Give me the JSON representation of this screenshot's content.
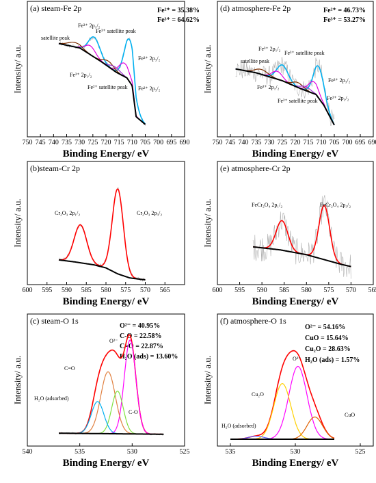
{
  "figure": {
    "x_axis_label": "Binding Energy/ eV",
    "y_axis_label": "Intensity/ a.u."
  },
  "chart_data": [
    {
      "id": "a",
      "type": "line",
      "title": "(a) steam-Fe 2p",
      "xlabel": "Binding Energy/ eV",
      "ylabel": "Intensity/ a.u.",
      "xlim": [
        750,
        690
      ],
      "reversed_x": true,
      "x_ticks": [
        "750",
        "745",
        "740",
        "735",
        "730",
        "725",
        "720",
        "715",
        "710",
        "705",
        "700",
        "695",
        "690"
      ],
      "data_range": [
        738,
        705
      ],
      "stats": [
        "Fe²⁺ = 35.38%",
        "Fe³⁺ = 64.62%"
      ],
      "annotations": [
        "satellite peak",
        "Fe³⁺ 2p₁/₂",
        "Fe³⁺ satellite peak",
        "Fe³⁺ 2p₃/₂",
        "Fe²⁺ 2p₁/₂",
        "Fe²⁺ satellite peak",
        "Fe²⁺ 2p₃/₂"
      ],
      "background": [
        [
          738,
          0.78
        ],
        [
          730,
          0.74
        ],
        [
          722,
          0.62
        ],
        [
          716,
          0.52
        ],
        [
          712,
          0.47
        ],
        [
          710,
          0.4
        ],
        [
          708.5,
          0.12
        ],
        [
          705,
          0.05
        ]
      ],
      "series": [
        {
          "color": "#00b0f0",
          "peaks": [
            [
              724.5,
              0.18,
              2.2
            ],
            [
              711,
              0.38,
              2.0
            ]
          ]
        },
        {
          "color": "#e000e0",
          "peaks": [
            [
              726,
              0.08,
              2.0
            ],
            [
              713,
              0.12,
              2.0
            ]
          ]
        },
        {
          "color": "#7b2d00",
          "peaks": [
            [
              719,
              0.05,
              2.0
            ],
            [
              732,
              0.04,
              2.5
            ]
          ]
        },
        {
          "color": "#9b30d0",
          "peaks": [
            [
              716.5,
              0.04,
              2.0
            ]
          ]
        }
      ],
      "noise": 0.02
    },
    {
      "id": "d",
      "type": "line",
      "title": "(d) atmosphere-Fe 2p",
      "xlabel": "Binding Energy/ eV",
      "ylabel": "Intensity/ a.u.",
      "xlim": [
        750,
        690
      ],
      "reversed_x": true,
      "x_ticks": [
        "750",
        "745",
        "740",
        "735",
        "730",
        "725",
        "720",
        "715",
        "710",
        "705",
        "700",
        "695",
        "690"
      ],
      "data_range": [
        743,
        705
      ],
      "stats": [
        "Fe²⁺ = 46.73%",
        "Fe³⁺ = 53.27%"
      ],
      "annotations": [
        "satellite peak",
        "Fe³⁺ 2p₁/₂",
        "Fe³⁺ satellite peak",
        "Fe³⁺ 2p₃/₂",
        "Fe²⁺ 2p₁/₂",
        "Fe²⁺ satellite peak",
        "Fe²⁺ 2p₃/₂"
      ],
      "background": [
        [
          743,
          0.62
        ],
        [
          735,
          0.58
        ],
        [
          725,
          0.5
        ],
        [
          718,
          0.42
        ],
        [
          712,
          0.36
        ],
        [
          709,
          0.25
        ],
        [
          705,
          0.05
        ]
      ],
      "series": [
        {
          "color": "#00b0f0",
          "peaks": [
            [
              725,
              0.16,
              2.2
            ],
            [
              711,
              0.32,
              2.0
            ]
          ]
        },
        {
          "color": "#e000e0",
          "peaks": [
            [
              727,
              0.08,
              2.0
            ],
            [
              713,
              0.12,
              2.0
            ]
          ]
        },
        {
          "color": "#7b2d00",
          "peaks": [
            [
              719,
              0.05,
              2.0
            ],
            [
              733,
              0.05,
              2.5
            ]
          ]
        },
        {
          "color": "#9b30d0",
          "peaks": [
            [
              716,
              0.04,
              2.0
            ]
          ]
        }
      ],
      "noise": 0.1
    },
    {
      "id": "b",
      "type": "line",
      "title": "(b)steam-Cr 2p",
      "xlabel": "Binding Energy/ eV",
      "ylabel": "Intensity/ a.u.",
      "xlim": [
        600,
        560
      ],
      "reversed_x": true,
      "x_ticks": [
        "600",
        "595",
        "590",
        "585",
        "580",
        "575",
        "570",
        "565"
      ],
      "data_range": [
        592,
        570
      ],
      "stats": [],
      "annotations": [
        "Cr₂O₃ 2p₁/₂",
        "Cr₂O₃ 2p₃/₂"
      ],
      "background": [
        [
          592,
          0.22
        ],
        [
          588,
          0.2
        ],
        [
          583,
          0.17
        ],
        [
          580,
          0.14
        ],
        [
          577,
          0.08
        ],
        [
          574,
          0.04
        ],
        [
          570,
          0.02
        ]
      ],
      "series": [
        {
          "color": "#ff0000",
          "peaks": [
            [
              586.5,
              0.38,
              1.6
            ],
            [
              577,
              0.85,
              1.4
            ]
          ]
        }
      ],
      "noise": 0.02
    },
    {
      "id": "e",
      "type": "line",
      "title": "(e) atmosphere-Cr 2p",
      "xlabel": "Binding Energy/ eV",
      "ylabel": "Intensity/ a.u.",
      "xlim": [
        600,
        565
      ],
      "reversed_x": true,
      "x_ticks": [
        "600",
        "595",
        "590",
        "585",
        "580",
        "575",
        "570",
        "565"
      ],
      "data_range": [
        592,
        570
      ],
      "stats": [],
      "annotations": [
        "FeCr₂O₄ 2p₁/₂",
        "FeCr₂O₄ 2p₃/₂"
      ],
      "background": [
        [
          592,
          0.3
        ],
        [
          586,
          0.27
        ],
        [
          580,
          0.22
        ],
        [
          576,
          0.17
        ],
        [
          572,
          0.12
        ],
        [
          570,
          0.1
        ]
      ],
      "series": [
        {
          "color": "#ff0000",
          "peaks": [
            [
              585.5,
              0.3,
              1.3
            ],
            [
              576,
              0.55,
              1.2
            ]
          ]
        }
      ],
      "noise": 0.14
    },
    {
      "id": "c",
      "type": "line",
      "title": "(c) steam-O 1s",
      "xlabel": "Binding Energy/ eV",
      "ylabel": "Intensity/ a.u.",
      "xlim": [
        540,
        525
      ],
      "reversed_x": true,
      "x_ticks": [
        "540",
        "535",
        "530",
        "525"
      ],
      "data_range": [
        537,
        527
      ],
      "stats": [
        "O²⁻ = 40.95%",
        "C-O = 22.58%",
        "C=O = 22.87%",
        "H₂O (ads) = 13.60%"
      ],
      "annotations": [
        "O²⁻",
        "C=O",
        "C-O",
        "H₂O (adsorbed)"
      ],
      "background": [
        [
          537,
          0.05
        ],
        [
          527,
          0.04
        ]
      ],
      "series": [
        {
          "color": "#ff0000",
          "peaks": [
            [
              530.2,
              0.88,
              0.55
            ],
            [
              532.3,
              0.58,
              0.7
            ],
            [
              531.4,
              0.4,
              0.55
            ],
            [
              533.3,
              0.3,
              0.6
            ]
          ]
        },
        {
          "color": "#ff00ff",
          "peaks": [
            [
              530.2,
              0.88,
              0.55
            ]
          ]
        },
        {
          "color": "#e08040",
          "peaks": [
            [
              532.3,
              0.58,
              0.7
            ]
          ]
        },
        {
          "color": "#80e040",
          "peaks": [
            [
              531.4,
              0.4,
              0.55
            ]
          ]
        },
        {
          "color": "#00b0f0",
          "peaks": [
            [
              533.3,
              0.3,
              0.6
            ]
          ]
        }
      ],
      "noise": 0.01
    },
    {
      "id": "f",
      "type": "line",
      "title": "(f) atmosphere-O 1s",
      "xlabel": "Binding Energy/ eV",
      "ylabel": "Intensity/ a.u.",
      "xlim": [
        536,
        524
      ],
      "reversed_x": true,
      "x_ticks": [
        "535",
        "530",
        "525"
      ],
      "data_range": [
        535,
        527
      ],
      "stats": [
        "O²⁻ = 54.16%",
        "CuO = 15.64%",
        "Cu₂O = 28.63%",
        "H₂O (ads) = 1.57%"
      ],
      "annotations": [
        "O²⁻",
        "Cu₂O",
        "CuO",
        "H₂O (adsorbed)"
      ],
      "background": [
        [
          535,
          0.02
        ],
        [
          527,
          0.02
        ]
      ],
      "series": [
        {
          "color": "#ff0000",
          "peaks": [
            [
              529.8,
              0.72,
              0.7
            ],
            [
              531,
              0.55,
              0.65
            ],
            [
              528.5,
              0.22,
              0.6
            ],
            [
              533,
              0.03,
              0.6
            ]
          ]
        },
        {
          "color": "#ff00ff",
          "peaks": [
            [
              529.8,
              0.72,
              0.7
            ]
          ]
        },
        {
          "color": "#ffd000",
          "peaks": [
            [
              531,
              0.55,
              0.65
            ]
          ]
        },
        {
          "color": "#e06000",
          "peaks": [
            [
              528.5,
              0.22,
              0.6
            ]
          ]
        },
        {
          "color": "#6060ff",
          "peaks": [
            [
              533,
              0.03,
              0.6
            ]
          ]
        }
      ],
      "noise": 0.005
    }
  ]
}
